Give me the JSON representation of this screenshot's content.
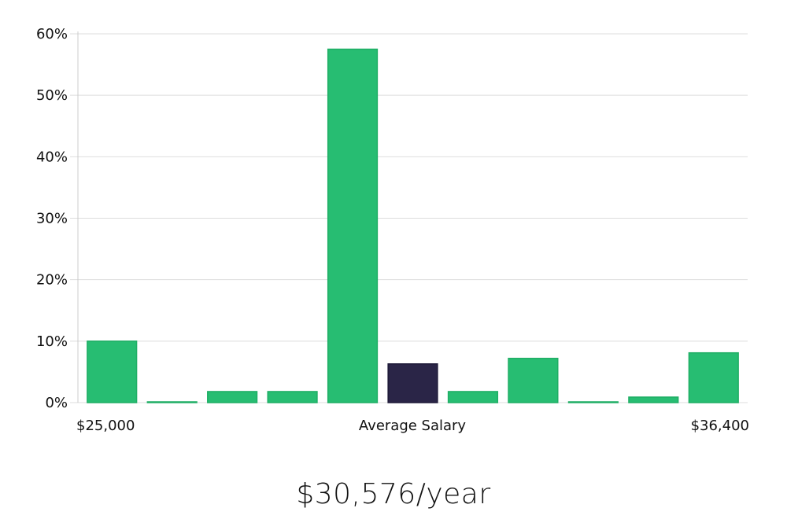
{
  "chart_data": {
    "type": "bar",
    "ylim": [
      0,
      60
    ],
    "yticks": [
      0,
      10,
      20,
      30,
      40,
      50,
      60
    ],
    "ytick_suffix": "%",
    "grid": true,
    "values": [
      10,
      0.1,
      1.8,
      1.8,
      57.5,
      6.3,
      1.8,
      7.2,
      0.1,
      0.9,
      8.1
    ],
    "highlight_index": 5,
    "x_labels": {
      "left": "$25,000",
      "center": "Average Salary",
      "right": "$36,400"
    },
    "colors": {
      "bar": "#27bd72",
      "bar_border": "#1fae65",
      "highlight": "#2a2547",
      "grid": "#dddddd",
      "axis": "#cccccc"
    }
  },
  "summary": {
    "average_salary": "$30,576/year"
  }
}
